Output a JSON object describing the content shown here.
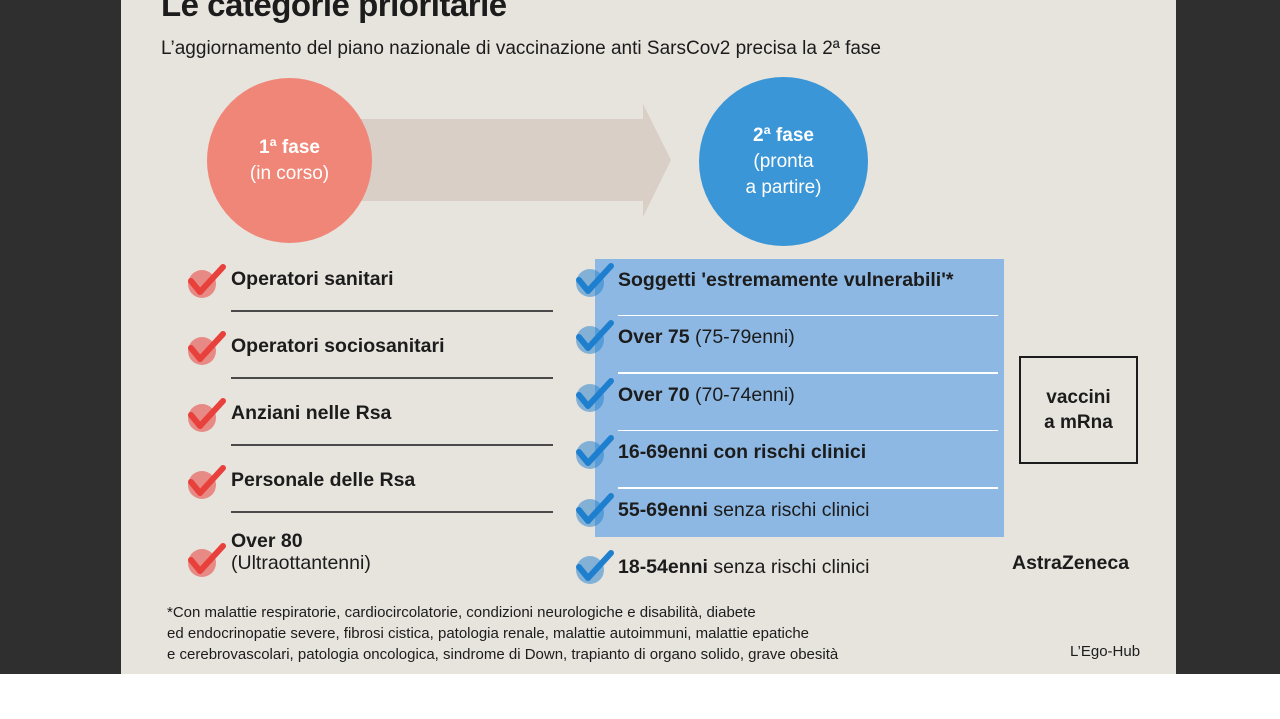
{
  "title": "Le categorie prioritarie",
  "subtitle": "L’aggiornamento del piano nazionale di vaccinazione anti SarsCov2 precisa la 2ª fase",
  "colors": {
    "phase1": "#f08677",
    "phase2": "#3a96d6",
    "arrow": "#d9cfc6",
    "check_red": "#e8403b",
    "check_blue": "#1f7fcf",
    "highlight_box": "#8db8e3",
    "background": "#e7e3dd"
  },
  "phase1": {
    "title": "1ª fase",
    "subtitle": "(in corso)"
  },
  "phase2": {
    "title": "2ª fase",
    "line2": "(pronta",
    "line3": "a partire)"
  },
  "phase1_items": [
    {
      "bold": "Operatori sanitari",
      "normal": ""
    },
    {
      "bold": "Operatori sociosanitari",
      "normal": ""
    },
    {
      "bold": "Anziani nelle Rsa",
      "normal": ""
    },
    {
      "bold": "Personale delle Rsa",
      "normal": ""
    },
    {
      "bold": "Over 80",
      "normal": "(Ultraottantenni)"
    }
  ],
  "phase2_items": [
    {
      "bold": "Soggetti 'estremamente vulnerabili'*",
      "normal": ""
    },
    {
      "bold": "Over 75",
      "normal": " (75-79enni)"
    },
    {
      "bold": "Over 70",
      "normal": " (70-74enni)"
    },
    {
      "bold": "16-69enni con rischi clinici",
      "normal": ""
    },
    {
      "bold": "55-69enni",
      "normal": " senza rischi clinici"
    },
    {
      "bold": "18-54enni",
      "normal": " senza rischi clinici"
    }
  ],
  "vaccine_box": {
    "line1": "vaccini",
    "line2": "a mRna"
  },
  "astrazeneca": "AstraZeneca",
  "footnote": [
    "*Con malattie respiratorie, cardiocircolatorie, condizioni neurologiche e disabilità, diabete",
    "ed endocrinopatie severe, fibrosi cistica, patologia renale, malattie autoimmuni, malattie epatiche",
    "e cerebrovascolari, patologia oncologica, sindrome di Down, trapianto di organo solido, grave obesità"
  ],
  "credit": "L’Ego-Hub"
}
